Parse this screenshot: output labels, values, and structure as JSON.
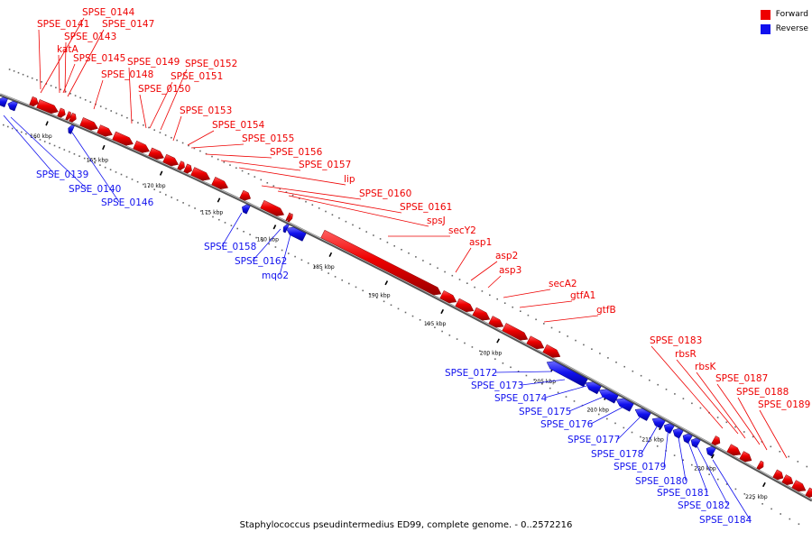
{
  "legend": {
    "forward_label": "Forward",
    "reverse_label": "Reverse",
    "forward_color": "#ee0000",
    "reverse_color": "#1111ee"
  },
  "caption": "Staphylococcus pseudintermedius ED99, complete genome. - 0..2572216",
  "ticks": [
    "160 kbp",
    "165 kbp",
    "170 kbp",
    "175 kbp",
    "180 kbp",
    "185 kbp",
    "190 kbp",
    "195 kbp",
    "200 kbp",
    "205 kbp",
    "210 kbp",
    "215 kbp",
    "220 kbp",
    "225 kbp"
  ],
  "forward_genes": [
    "SPSE_0144",
    "SPSE_0141",
    "SPSE_0147",
    "SPSE_0143",
    "katA",
    "SPSE_0145",
    "SPSE_0149",
    "SPSE_0152",
    "SPSE_0148",
    "SPSE_0151",
    "SPSE_0150",
    "SPSE_0153",
    "SPSE_0154",
    "SPSE_0155",
    "SPSE_0156",
    "SPSE_0157",
    "lip",
    "SPSE_0160",
    "SPSE_0161",
    "spsJ",
    "secY2",
    "asp1",
    "asp2",
    "asp3",
    "secA2",
    "gtfA1",
    "gtfB",
    "SPSE_0183",
    "rbsR",
    "rbsK",
    "SPSE_0187",
    "SPSE_0188",
    "SPSE_0189"
  ],
  "reverse_genes": [
    "SPSE_0139",
    "SPSE_0140",
    "SPSE_0146",
    "SPSE_0158",
    "SPSE_0162",
    "mqo2",
    "SPSE_0172",
    "SPSE_0173",
    "SPSE_0174",
    "SPSE_0175",
    "SPSE_0176",
    "SPSE_0177",
    "SPSE_0178",
    "SPSE_0179",
    "SPSE_0180",
    "SPSE_0181",
    "SPSE_0182",
    "SPSE_0184"
  ]
}
